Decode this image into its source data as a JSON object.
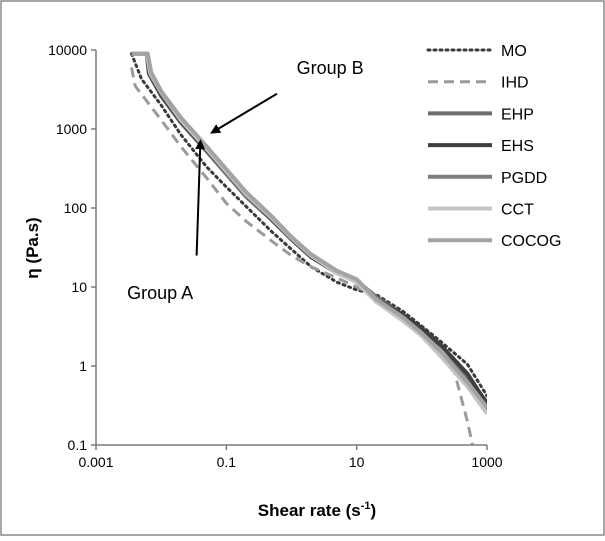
{
  "chart_data": {
    "type": "line",
    "title": "",
    "xlabel": "Shear rate (s",
    "xlabel_sup": "-1",
    "xlabel_end": ")",
    "ylabel": "η (Pa.s)",
    "xscale": "log",
    "yscale": "log",
    "xlim": [
      0.001,
      1000
    ],
    "ylim": [
      0.1,
      10000
    ],
    "x_ticks": [
      {
        "value": 0.001,
        "label": "0.001"
      },
      {
        "value": 0.1,
        "label": "0.1"
      },
      {
        "value": 10,
        "label": "10"
      },
      {
        "value": 1000,
        "label": "1000"
      }
    ],
    "y_ticks": [
      {
        "value": 0.1,
        "label": "0.1"
      },
      {
        "value": 1,
        "label": "1"
      },
      {
        "value": 10,
        "label": "10"
      },
      {
        "value": 100,
        "label": "100"
      },
      {
        "value": 1000,
        "label": "1000"
      },
      {
        "value": 10000,
        "label": "10000"
      }
    ],
    "grid": false,
    "legend_position": "right",
    "annotations": [
      {
        "text": "Group B",
        "text_at": [
          1.2,
          5000
        ],
        "arrow_from": [
          0.6,
          2800
        ],
        "arrow_to": [
          0.06,
          900
        ]
      },
      {
        "text": "Group A",
        "text_at": [
          0.003,
          7
        ],
        "arrow_from": [
          0.035,
          25
        ],
        "arrow_to": [
          0.04,
          700
        ]
      }
    ],
    "series": [
      {
        "name": "MO",
        "color": "#3a3a3a",
        "style": "dotted",
        "width": 3,
        "points": [
          [
            0.0035,
            9000
          ],
          [
            0.005,
            4300
          ],
          [
            0.01,
            2000
          ],
          [
            0.02,
            850
          ],
          [
            0.05,
            330
          ],
          [
            0.1,
            185
          ],
          [
            0.2,
            105
          ],
          [
            0.5,
            50
          ],
          [
            1,
            30
          ],
          [
            2,
            18
          ],
          [
            5,
            11.5
          ],
          [
            10,
            9.2
          ],
          [
            20,
            8
          ],
          [
            50,
            5
          ],
          [
            100,
            3.2
          ],
          [
            200,
            2
          ],
          [
            500,
            1.05
          ],
          [
            1000,
            0.42
          ]
        ]
      },
      {
        "name": "IHD",
        "color": "#9a9a9a",
        "style": "dashed",
        "width": 3,
        "points": [
          [
            0.0035,
            6000
          ],
          [
            0.004,
            3500
          ],
          [
            0.01,
            1300
          ],
          [
            0.02,
            600
          ],
          [
            0.05,
            240
          ],
          [
            0.1,
            115
          ],
          [
            0.2,
            68
          ],
          [
            0.5,
            38
          ],
          [
            1,
            25
          ],
          [
            2,
            18
          ],
          [
            5,
            13
          ],
          [
            10,
            10
          ],
          [
            20,
            7.5
          ],
          [
            50,
            4
          ],
          [
            100,
            2.5
          ],
          [
            200,
            1.5
          ],
          [
            300,
            1
          ],
          [
            400,
            0.4
          ],
          [
            500,
            0.2
          ],
          [
            600,
            0.1
          ]
        ]
      },
      {
        "name": "EHP",
        "color": "#6e6e6e",
        "style": "solid",
        "width": 4,
        "points": [
          [
            0.0035,
            9000
          ],
          [
            0.006,
            9000
          ],
          [
            0.0065,
            5000
          ],
          [
            0.01,
            2600
          ],
          [
            0.02,
            1200
          ],
          [
            0.05,
            520
          ],
          [
            0.1,
            270
          ],
          [
            0.2,
            140
          ],
          [
            0.5,
            70
          ],
          [
            1,
            40
          ],
          [
            2,
            24
          ],
          [
            5,
            16
          ],
          [
            10,
            12
          ],
          [
            20,
            7.5
          ],
          [
            50,
            4.5
          ],
          [
            100,
            2.8
          ],
          [
            200,
            1.5
          ],
          [
            500,
            0.7
          ],
          [
            1000,
            0.35
          ]
        ]
      },
      {
        "name": "EHS",
        "color": "#3f3f3f",
        "style": "solid",
        "width": 4,
        "points": [
          [
            0.0035,
            9000
          ],
          [
            0.006,
            9000
          ],
          [
            0.0065,
            5000
          ],
          [
            0.01,
            2700
          ],
          [
            0.02,
            1250
          ],
          [
            0.05,
            540
          ],
          [
            0.1,
            290
          ],
          [
            0.2,
            150
          ],
          [
            0.5,
            72
          ],
          [
            1,
            40
          ],
          [
            2,
            24
          ],
          [
            5,
            15
          ],
          [
            10,
            12
          ],
          [
            20,
            7
          ],
          [
            50,
            4.5
          ],
          [
            100,
            3
          ],
          [
            200,
            1.8
          ],
          [
            500,
            0.8
          ],
          [
            1000,
            0.33
          ]
        ]
      },
      {
        "name": "PGDD",
        "color": "#7e7e7e",
        "style": "solid",
        "width": 4,
        "points": [
          [
            0.0035,
            9000
          ],
          [
            0.0062,
            9000
          ],
          [
            0.007,
            5200
          ],
          [
            0.01,
            3000
          ],
          [
            0.02,
            1350
          ],
          [
            0.05,
            580
          ],
          [
            0.1,
            300
          ],
          [
            0.2,
            155
          ],
          [
            0.5,
            75
          ],
          [
            1,
            41
          ],
          [
            2,
            25
          ],
          [
            5,
            15.5
          ],
          [
            10,
            12
          ],
          [
            20,
            7
          ],
          [
            50,
            4
          ],
          [
            100,
            2.6
          ],
          [
            200,
            1.5
          ],
          [
            500,
            0.6
          ],
          [
            1000,
            0.28
          ]
        ]
      },
      {
        "name": "CCT",
        "color": "#c4c4c4",
        "style": "solid",
        "width": 4,
        "points": [
          [
            0.0035,
            9000
          ],
          [
            0.006,
            9000
          ],
          [
            0.0068,
            5000
          ],
          [
            0.01,
            2900
          ],
          [
            0.02,
            1300
          ],
          [
            0.05,
            560
          ],
          [
            0.1,
            290
          ],
          [
            0.2,
            150
          ],
          [
            0.5,
            74
          ],
          [
            1,
            42
          ],
          [
            2,
            25
          ],
          [
            5,
            15
          ],
          [
            10,
            11.5
          ],
          [
            20,
            6.5
          ],
          [
            50,
            3.8
          ],
          [
            100,
            2.4
          ],
          [
            200,
            1.3
          ],
          [
            500,
            0.55
          ],
          [
            1000,
            0.25
          ]
        ]
      },
      {
        "name": "COCOG",
        "color": "#a3a3a3",
        "style": "solid",
        "width": 4,
        "points": [
          [
            0.0035,
            9000
          ],
          [
            0.0062,
            9000
          ],
          [
            0.007,
            5200
          ],
          [
            0.01,
            3000
          ],
          [
            0.02,
            1400
          ],
          [
            0.05,
            600
          ],
          [
            0.1,
            310
          ],
          [
            0.2,
            160
          ],
          [
            0.5,
            78
          ],
          [
            1,
            43
          ],
          [
            2,
            26
          ],
          [
            5,
            16
          ],
          [
            10,
            12.5
          ],
          [
            20,
            7
          ],
          [
            50,
            4.2
          ],
          [
            100,
            2.6
          ],
          [
            200,
            1.5
          ],
          [
            500,
            0.62
          ],
          [
            1000,
            0.3
          ]
        ]
      }
    ]
  }
}
